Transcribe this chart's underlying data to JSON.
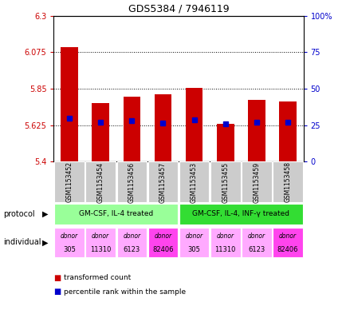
{
  "title": "GDS5384 / 7946119",
  "samples": [
    "GSM1153452",
    "GSM1153454",
    "GSM1153456",
    "GSM1153457",
    "GSM1153453",
    "GSM1153455",
    "GSM1153459",
    "GSM1153458"
  ],
  "red_values": [
    6.105,
    5.76,
    5.8,
    5.815,
    5.855,
    5.635,
    5.78,
    5.77
  ],
  "blue_values": [
    5.67,
    5.645,
    5.655,
    5.638,
    5.66,
    5.633,
    5.645,
    5.645
  ],
  "ylim_left": [
    5.4,
    6.3
  ],
  "ylim_right": [
    0,
    100
  ],
  "yticks_left": [
    5.4,
    5.625,
    5.85,
    6.075,
    6.3
  ],
  "yticks_right": [
    0,
    25,
    50,
    75,
    100
  ],
  "ytick_labels_left": [
    "5.4",
    "5.625",
    "5.85",
    "6.075",
    "6.3"
  ],
  "ytick_labels_right": [
    "0",
    "25",
    "50",
    "75",
    "100%"
  ],
  "left_axis_color": "#cc0000",
  "right_axis_color": "#0000cc",
  "bar_color": "#cc0000",
  "blue_color": "#0000cc",
  "protocol_groups": [
    {
      "label": "GM-CSF, IL-4 treated",
      "start": 0,
      "end": 4,
      "color": "#99ff99"
    },
    {
      "label": "GM-CSF, IL-4, INF-γ treated",
      "start": 4,
      "end": 8,
      "color": "#33dd33"
    }
  ],
  "individuals": [
    {
      "label": "donor\n305",
      "col": 0,
      "color": "#ffaaff"
    },
    {
      "label": "donor\n11310",
      "col": 1,
      "color": "#ffaaff"
    },
    {
      "label": "donor\n6123",
      "col": 2,
      "color": "#ffaaff"
    },
    {
      "label": "donor\n82406",
      "col": 3,
      "color": "#ff44ee"
    },
    {
      "label": "donor\n305",
      "col": 4,
      "color": "#ffaaff"
    },
    {
      "label": "donor\n11310",
      "col": 5,
      "color": "#ffaaff"
    },
    {
      "label": "donor\n6123",
      "col": 6,
      "color": "#ffaaff"
    },
    {
      "label": "donor\n82406",
      "col": 7,
      "color": "#ff44ee"
    }
  ],
  "sample_bg_color": "#cccccc",
  "legend_red_label": "transformed count",
  "legend_blue_label": "percentile rank within the sample",
  "protocol_label": "protocol",
  "individual_label": "individual",
  "bar_width": 0.55
}
